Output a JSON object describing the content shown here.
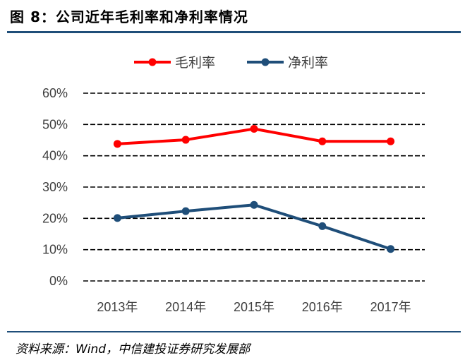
{
  "header": {
    "title": "图 8：公司近年毛利率和净利率情况"
  },
  "footer": {
    "source": "资料来源：Wind，中信建投证券研究发展部"
  },
  "colors": {
    "rule": "#1f4e79",
    "series_gross": "#ff0000",
    "series_net": "#1f4e79"
  },
  "chart_data": {
    "type": "line",
    "title": "",
    "xlabel": "",
    "ylabel": "",
    "categories": [
      "2013年",
      "2014年",
      "2015年",
      "2016年",
      "2017年"
    ],
    "y_ticks": [
      "0%",
      "10%",
      "20%",
      "30%",
      "40%",
      "50%",
      "60%"
    ],
    "ylim": [
      0,
      60
    ],
    "grid": "horizontal-dashed",
    "legend_position": "top-center",
    "series": [
      {
        "name": "毛利率",
        "color": "#ff0000",
        "values": [
          43.8,
          45.1,
          48.6,
          44.6,
          44.6
        ]
      },
      {
        "name": "净利率",
        "color": "#1f4e79",
        "values": [
          20.1,
          22.3,
          24.3,
          17.5,
          10.2
        ]
      }
    ]
  }
}
